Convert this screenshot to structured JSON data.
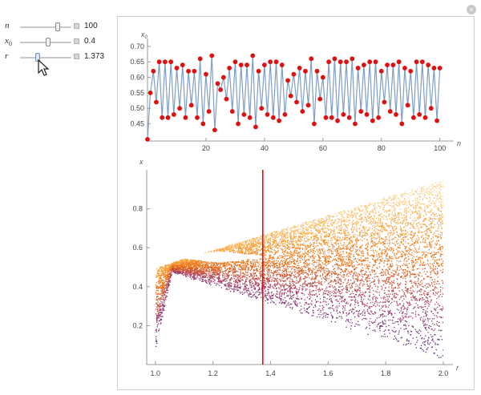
{
  "controls": [
    {
      "label": "n",
      "sub": "",
      "value": "100",
      "level": 0.75
    },
    {
      "label": "x",
      "sub": "0",
      "value": "0.4",
      "level": 0.55
    },
    {
      "label": "r",
      "sub": "",
      "value": "1.373",
      "level": 0.33
    }
  ],
  "icons": {
    "close": "close-icon",
    "plus": "plus-icon",
    "cursor": "mouse-pointer-icon"
  },
  "colors": {
    "series_line": "#7f9fc6",
    "series_point": "#e01010",
    "marker_line": "#ff0000"
  },
  "chart_data": [
    {
      "type": "line",
      "title": "",
      "xlabel": "n",
      "ylabel": "x0",
      "xlim": [
        0,
        102
      ],
      "ylim": [
        0.41,
        0.71
      ],
      "xticks": [
        "20",
        "40",
        "60",
        "80",
        "100"
      ],
      "yticks": [
        "0.45",
        "0.50",
        "0.55",
        "0.60",
        "0.65",
        "0.70"
      ],
      "series": [
        {
          "x": [
            0,
            1,
            2,
            3,
            4,
            5,
            6,
            7,
            8,
            9,
            10,
            11,
            12,
            13,
            14,
            15,
            16,
            17,
            18,
            19,
            20,
            21,
            22,
            23,
            24,
            25,
            26,
            27,
            28,
            29,
            30,
            31,
            32,
            33,
            34,
            35,
            36,
            37,
            38,
            39,
            40,
            41,
            42,
            43,
            44,
            45,
            46,
            47,
            48,
            49,
            50,
            51,
            52,
            53,
            54,
            55,
            56,
            57,
            58,
            59,
            60,
            61,
            62,
            63,
            64,
            65,
            66,
            67,
            68,
            69,
            70,
            71,
            72,
            73,
            74,
            75,
            76,
            77,
            78,
            79,
            80,
            81,
            82,
            83,
            84,
            85,
            86,
            87,
            88,
            89,
            90,
            91,
            92,
            93,
            94,
            95,
            96,
            97,
            98,
            99,
            100
          ],
          "values": [
            0.4,
            0.55,
            0.62,
            0.52,
            0.65,
            0.47,
            0.65,
            0.47,
            0.65,
            0.48,
            0.63,
            0.5,
            0.64,
            0.47,
            0.62,
            0.51,
            0.62,
            0.47,
            0.66,
            0.45,
            0.61,
            0.49,
            0.67,
            0.43,
            0.58,
            0.56,
            0.6,
            0.53,
            0.63,
            0.49,
            0.65,
            0.45,
            0.64,
            0.48,
            0.64,
            0.47,
            0.67,
            0.44,
            0.62,
            0.5,
            0.64,
            0.48,
            0.65,
            0.47,
            0.65,
            0.46,
            0.64,
            0.48,
            0.59,
            0.54,
            0.61,
            0.52,
            0.63,
            0.49,
            0.62,
            0.51,
            0.66,
            0.45,
            0.62,
            0.53,
            0.6,
            0.47,
            0.65,
            0.47,
            0.66,
            0.46,
            0.65,
            0.48,
            0.65,
            0.47,
            0.66,
            0.45,
            0.63,
            0.49,
            0.64,
            0.48,
            0.65,
            0.46,
            0.65,
            0.47,
            0.62,
            0.52,
            0.64,
            0.49,
            0.64,
            0.48,
            0.65,
            0.45,
            0.63,
            0.51,
            0.62,
            0.47,
            0.65,
            0.48,
            0.65,
            0.47,
            0.64,
            0.5,
            0.63,
            0.46,
            0.63
          ]
        }
      ]
    },
    {
      "type": "scatter",
      "title": "",
      "xlabel": "r",
      "ylabel": "x",
      "xlim": [
        0.97,
        2.0
      ],
      "ylim": [
        0.0,
        1.0
      ],
      "xticks": [
        "1.0",
        "1.2",
        "1.4",
        "1.6",
        "1.8",
        "2.0"
      ],
      "yticks": [
        "0.2",
        "0.4",
        "0.6",
        "0.8"
      ],
      "marker_r": 1.373,
      "colormap": [
        "#1f1133",
        "#5b2a86",
        "#a63b5d",
        "#e86a14",
        "#f7a23a",
        "#f7e6b0"
      ]
    }
  ]
}
